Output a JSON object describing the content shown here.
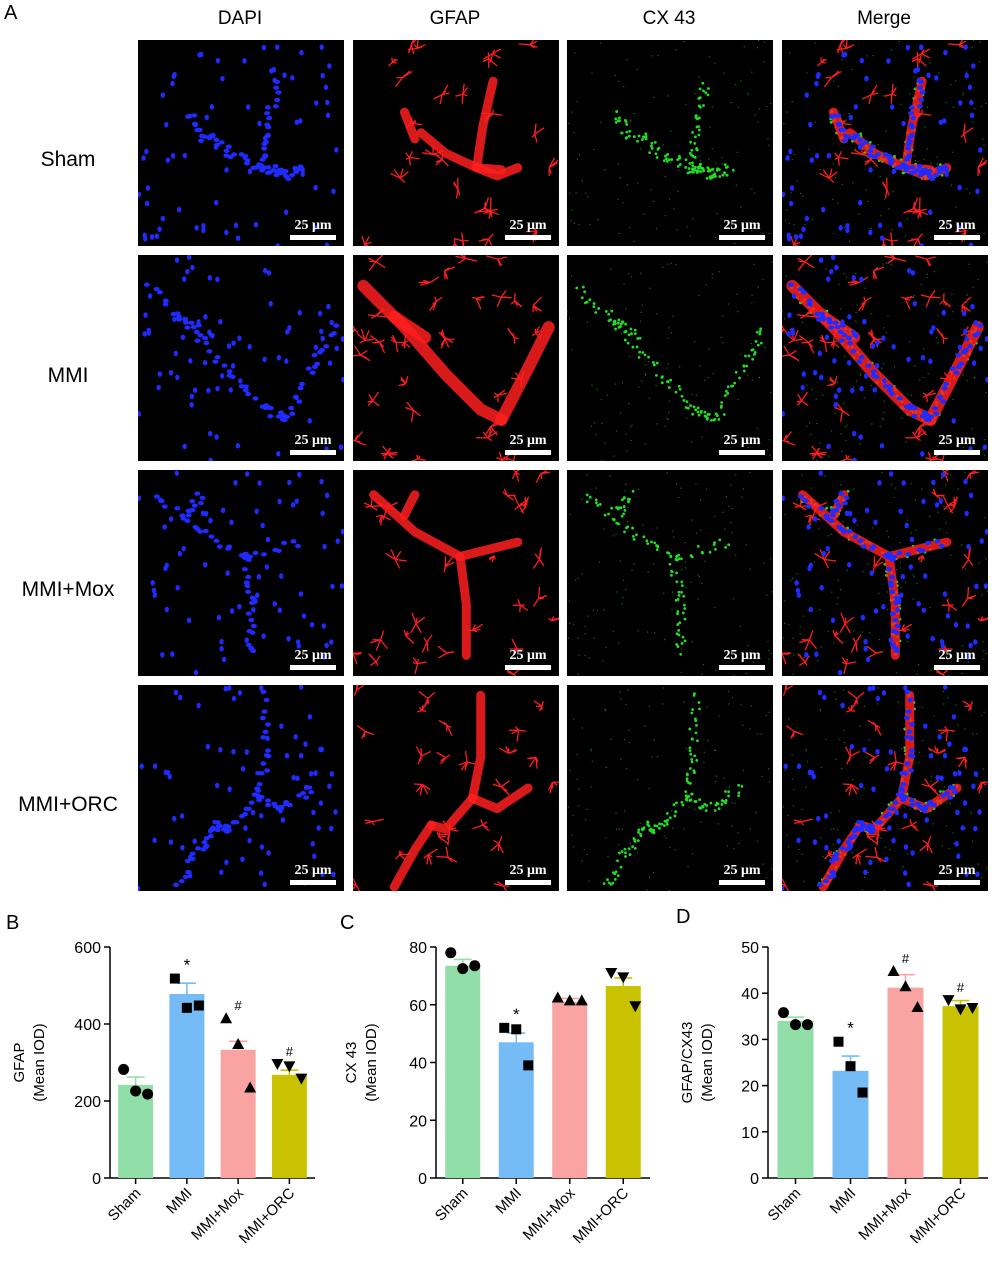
{
  "figure": {
    "panel_a_label": "A",
    "columns": [
      {
        "label": "DAPI",
        "channel": "dapi"
      },
      {
        "label": "GFAP",
        "channel": "gfap"
      },
      {
        "label": "CX 43",
        "channel": "cx43"
      },
      {
        "label": "Merge",
        "channel": "merge"
      }
    ],
    "rows": [
      {
        "label": "Sham"
      },
      {
        "label": "MMI"
      },
      {
        "label": "MMI+Mox"
      },
      {
        "label": "MMI+ORC"
      }
    ],
    "scale_bar_label": "25 μm",
    "channel_colors": {
      "dapi": "#1f2bff",
      "gfap": "#ff1e1e",
      "cx43": "#22dd22"
    }
  },
  "chart_data": [
    {
      "panel": "B",
      "type": "bar",
      "categories": [
        "Sham",
        "MMI",
        "MMI+Mox",
        "MMI+ORC"
      ],
      "values": [
        242,
        478,
        333,
        268
      ],
      "errors": [
        20,
        28,
        22,
        12
      ],
      "points": [
        [
          282,
          226,
          218
        ],
        [
          518,
          442,
          448
        ],
        [
          415,
          348,
          235
        ],
        [
          296,
          290,
          258
        ]
      ],
      "markers": [
        "circle",
        "square",
        "triangle-up",
        "triangle-down"
      ],
      "colors": [
        "#92dea8",
        "#75bcf7",
        "#f9a3a3",
        "#c8c200"
      ],
      "annotations": [
        "",
        "*",
        "#",
        "#"
      ],
      "ylabel_lines": [
        "GFAP",
        "(Mean IOD)"
      ],
      "ylim": [
        0,
        600
      ],
      "yticks": [
        0,
        200,
        400,
        600
      ]
    },
    {
      "panel": "C",
      "type": "bar",
      "categories": [
        "Sham",
        "MMI",
        "MMI+Mox",
        "MMI+ORC"
      ],
      "values": [
        73.5,
        47,
        61,
        66.5
      ],
      "errors": [
        2.2,
        3.2,
        1.2,
        2.8
      ],
      "points": [
        [
          78,
          72.5,
          73.5
        ],
        [
          52,
          51.5,
          39
        ],
        [
          62.5,
          61.5,
          61.5
        ],
        [
          71,
          69.5,
          59.5
        ]
      ],
      "markers": [
        "circle",
        "square",
        "triangle-up",
        "triangle-down"
      ],
      "colors": [
        "#92dea8",
        "#75bcf7",
        "#f9a3a3",
        "#c8c200"
      ],
      "annotations": [
        "",
        "*",
        "",
        ""
      ],
      "ylabel_lines": [
        "CX 43",
        "(Mean IOD)"
      ],
      "ylim": [
        0,
        80
      ],
      "yticks": [
        0,
        20,
        40,
        60,
        80
      ]
    },
    {
      "panel": "D",
      "type": "bar",
      "categories": [
        "Sham",
        "MMI",
        "MMI+Mox",
        "MMI+ORC"
      ],
      "values": [
        34,
        23.2,
        41.2,
        37.2
      ],
      "errors": [
        0.8,
        3.2,
        2.8,
        1.2
      ],
      "points": [
        [
          35.8,
          33.2,
          33.2
        ],
        [
          29.5,
          24.2,
          18.5
        ],
        [
          44.8,
          41.5,
          37
        ],
        [
          38.5,
          36.5,
          36.8
        ]
      ],
      "markers": [
        "circle",
        "square",
        "triangle-up",
        "triangle-down"
      ],
      "colors": [
        "#92dea8",
        "#75bcf7",
        "#f9a3a3",
        "#c8c200"
      ],
      "annotations": [
        "",
        "*",
        "#",
        "#"
      ],
      "ylabel_lines": [
        "GFAP/CX43",
        "(Mean IOD)"
      ],
      "ylim": [
        0,
        50
      ],
      "yticks": [
        0,
        10,
        20,
        30,
        40,
        50
      ]
    }
  ]
}
